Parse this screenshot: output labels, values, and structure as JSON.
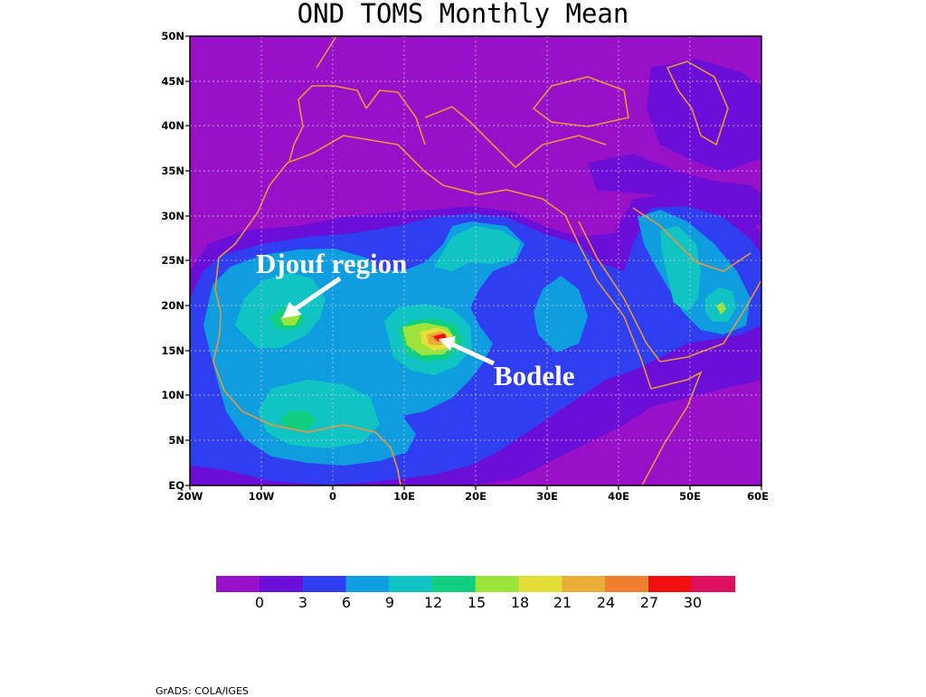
{
  "title": "OND TOMS Monthly Mean",
  "footer": "GrADS: COLA/IGES",
  "colors": {
    "background": "#9810c8",
    "coast": "#e8963a",
    "levels": [
      "#9810c8",
      "#6a0ed8",
      "#2e3ef0",
      "#0e9ee0",
      "#10c4c4",
      "#10d080",
      "#9be43a",
      "#e6de38",
      "#e8ae38",
      "#f08030",
      "#f01010",
      "#e01060"
    ]
  },
  "annotations": {
    "djouf": "Djouf region",
    "bodele": "Bodele"
  },
  "lat_ticks": [
    "EQ",
    "5N",
    "10N",
    "15N",
    "20N",
    "25N",
    "30N",
    "35N",
    "40N",
    "45N",
    "50N"
  ],
  "lon_ticks": [
    "20W",
    "10W",
    "0",
    "10E",
    "20E",
    "30E",
    "40E",
    "50E",
    "60E"
  ],
  "colorbar": {
    "labels": [
      "0",
      "3",
      "6",
      "9",
      "12",
      "15",
      "18",
      "21",
      "24",
      "27",
      "30"
    ]
  }
}
